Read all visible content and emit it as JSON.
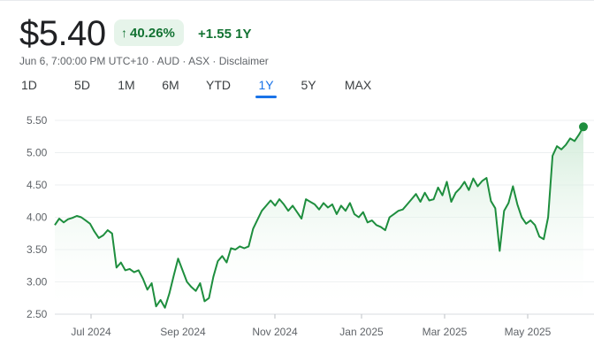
{
  "quote": {
    "price": "$5.40",
    "change_pct": "40.26%",
    "change_abs": "+1.55 1Y",
    "meta": "Jun 6, 7:00:00 PM UTC+10 · AUD · ASX · ",
    "disclaimer": "Disclaimer",
    "up_icon": "arrow-up-icon"
  },
  "tabs": [
    {
      "label": "1D"
    },
    {
      "label": "5D"
    },
    {
      "label": "1M"
    },
    {
      "label": "6M"
    },
    {
      "label": "YTD"
    },
    {
      "label": "1Y",
      "active": true
    },
    {
      "label": "5Y"
    },
    {
      "label": "MAX"
    }
  ],
  "colors": {
    "line": "#1e8e3e",
    "area_top": "#ceead6",
    "badge_bg": "#e6f4ea",
    "active_tab": "#1a73e8"
  },
  "chart_data": {
    "type": "area",
    "ylim": [
      2.5,
      5.5
    ],
    "y_ticks": [
      "5.50",
      "5.00",
      "4.50",
      "4.00",
      "3.50",
      "3.00",
      "2.50"
    ],
    "x_ticks": [
      "Jul 2024",
      "Sep 2024",
      "Nov 2024",
      "Jan 2025",
      "Mar 2025",
      "May 2025"
    ],
    "grid": true,
    "series": [
      {
        "values": [
          3.88,
          3.98,
          3.92,
          3.97,
          3.99,
          4.02,
          4.0,
          3.95,
          3.9,
          3.78,
          3.68,
          3.72,
          3.8,
          3.75,
          3.22,
          3.3,
          3.18,
          3.2,
          3.15,
          3.18,
          3.05,
          2.88,
          2.98,
          2.62,
          2.72,
          2.6,
          2.82,
          3.1,
          3.36,
          3.18,
          3.0,
          2.92,
          2.86,
          2.98,
          2.7,
          2.75,
          3.08,
          3.32,
          3.4,
          3.3,
          3.52,
          3.5,
          3.55,
          3.52,
          3.55,
          3.82,
          3.96,
          4.1,
          4.18,
          4.26,
          4.18,
          4.28,
          4.2,
          4.1,
          4.18,
          4.08,
          3.98,
          4.28,
          4.24,
          4.2,
          4.12,
          4.22,
          4.15,
          4.2,
          4.05,
          4.18,
          4.1,
          4.22,
          4.05,
          4.0,
          4.08,
          3.92,
          3.95,
          3.88,
          3.85,
          3.8,
          4.0,
          4.05,
          4.1,
          4.12,
          4.2,
          4.28,
          4.36,
          4.24,
          4.38,
          4.26,
          4.28,
          4.46,
          4.34,
          4.55,
          4.24,
          4.38,
          4.45,
          4.55,
          4.42,
          4.6,
          4.48,
          4.56,
          4.61,
          4.25,
          4.14,
          3.48,
          4.1,
          4.22,
          4.48,
          4.2,
          4.0,
          3.9,
          3.95,
          3.88,
          3.7,
          3.66,
          4.0,
          4.95,
          5.1,
          5.05,
          5.12,
          5.22,
          5.18,
          5.28,
          5.4
        ]
      }
    ]
  }
}
